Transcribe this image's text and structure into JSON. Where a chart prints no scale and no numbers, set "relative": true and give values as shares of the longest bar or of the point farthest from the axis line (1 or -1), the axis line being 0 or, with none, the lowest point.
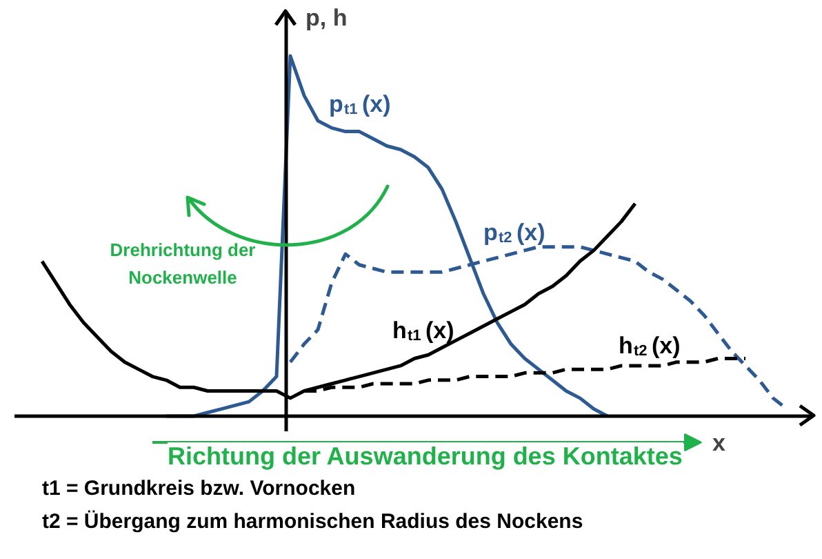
{
  "chart_data": {
    "type": "line",
    "relative": true,
    "xlabel": "x",
    "ylabel": "p, h",
    "categories": [
      null,
      null,
      null,
      null,
      null,
      null,
      null,
      null,
      null,
      null,
      null,
      null,
      null,
      null,
      null,
      null,
      null,
      null,
      null,
      null,
      null,
      null,
      null,
      null,
      null,
      null,
      null,
      null,
      null,
      null,
      null,
      null,
      null,
      null,
      null,
      null,
      null,
      null,
      null,
      null,
      null,
      null,
      null,
      null,
      null,
      null,
      null,
      null,
      null,
      null,
      null,
      null,
      null,
      null,
      null
    ],
    "series": [
      {
        "name": "p$_{t1}$ (x)",
        "color": "#2e5a94",
        "line_style": "solid",
        "values": [
          null,
          null,
          null,
          null,
          null,
          null,
          null,
          null,
          null,
          0,
          0,
          0,
          0.01,
          0.02,
          0.03,
          0.04,
          0.07,
          0.11,
          1.0,
          0.89,
          0.82,
          0.8,
          0.79,
          0.79,
          0.77,
          0.75,
          0.74,
          0.72,
          0.69,
          0.63,
          0.54,
          0.44,
          0.34,
          0.26,
          0.2,
          0.16,
          0.13,
          0.1,
          0.07,
          0.05,
          0.02,
          0,
          null,
          null,
          null,
          null,
          null,
          null,
          null,
          null,
          null,
          null,
          null,
          null,
          null
        ]
      },
      {
        "name": "p$_{t2}$ (x)",
        "color": "#2e5a94",
        "line_style": "dashed",
        "values": [
          null,
          null,
          null,
          null,
          null,
          null,
          null,
          null,
          null,
          null,
          null,
          null,
          null,
          null,
          null,
          null,
          null,
          null,
          0.15,
          0.2,
          0.24,
          0.37,
          0.45,
          0.42,
          0.41,
          0.4,
          0.4,
          0.4,
          0.4,
          0.4,
          0.41,
          0.42,
          0.43,
          0.44,
          0.45,
          0.46,
          0.47,
          0.47,
          0.47,
          0.47,
          0.46,
          0.45,
          0.44,
          0.43,
          0.4,
          0.38,
          0.35,
          0.32,
          0.28,
          0.23,
          0.18,
          0.14,
          0.1,
          0.05,
          0.02
        ]
      },
      {
        "name": "h$_{t1}$ (x)",
        "color": "#000000",
        "line_style": "solid",
        "values": [
          0.43,
          0.37,
          0.31,
          0.26,
          0.22,
          0.18,
          0.15,
          0.13,
          0.11,
          0.1,
          0.08,
          0.08,
          0.07,
          0.07,
          0.07,
          0.07,
          0.07,
          0.07,
          0.05,
          0.07,
          0.08,
          0.09,
          0.1,
          0.11,
          0.12,
          0.13,
          0.14,
          0.16,
          0.17,
          0.19,
          0.21,
          0.23,
          0.25,
          0.27,
          0.29,
          0.31,
          0.34,
          0.36,
          0.39,
          0.43,
          0.46,
          0.5,
          0.54,
          0.59,
          null,
          null,
          null,
          null,
          null,
          null,
          null,
          null,
          null,
          null,
          null
        ]
      },
      {
        "name": "h$_{t2}$ (x)",
        "color": "#000000",
        "line_style": "dashed",
        "values": [
          null,
          null,
          null,
          null,
          null,
          null,
          null,
          null,
          null,
          null,
          null,
          null,
          null,
          null,
          null,
          null,
          null,
          null,
          null,
          0.07,
          0.07,
          0.08,
          0.08,
          0.08,
          0.09,
          0.09,
          0.09,
          0.09,
          0.1,
          0.1,
          0.1,
          0.11,
          0.11,
          0.11,
          0.11,
          0.12,
          0.12,
          0.12,
          0.13,
          0.13,
          0.13,
          0.13,
          0.14,
          0.14,
          0.14,
          0.14,
          0.15,
          0.15,
          0.15,
          0.16,
          0.16,
          0.16,
          null,
          null,
          null
        ]
      }
    ],
    "annotations": [
      "Drehrichtung der Nockenwelle",
      "Richtung der Auswanderung des Kontaktes",
      "t1 = Grundkreis bzw. Vornocken",
      "t2 = Übergang zum harmonischen Radius des Nockens"
    ]
  }
}
